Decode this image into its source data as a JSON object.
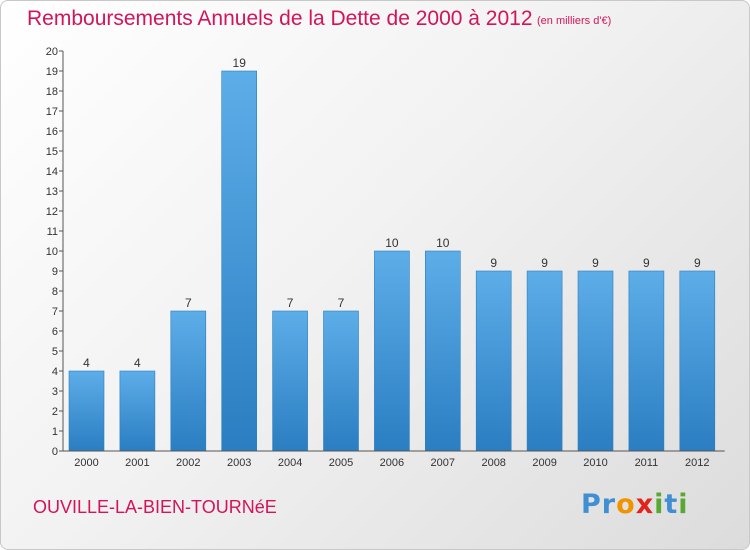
{
  "chart_data": {
    "type": "bar",
    "title": "Remboursements Annuels de la Dette de 2000 à 2012",
    "subtitle": "(en milliers d'€)",
    "categories": [
      "2000",
      "2001",
      "2002",
      "2003",
      "2004",
      "2005",
      "2006",
      "2007",
      "2008",
      "2009",
      "2010",
      "2011",
      "2012"
    ],
    "values": [
      4,
      4,
      7,
      19,
      7,
      7,
      10,
      10,
      9,
      9,
      9,
      9,
      9
    ],
    "data_labels": [
      "4",
      "4",
      "7",
      "19",
      "7",
      "7",
      "10",
      "10",
      "9",
      "9",
      "9",
      "9",
      "9"
    ],
    "yticks": [
      "0",
      "1",
      "2",
      "3",
      "4",
      "5",
      "6",
      "7",
      "8",
      "9",
      "10",
      "11",
      "12",
      "13",
      "14",
      "15",
      "16",
      "17",
      "18",
      "19",
      "20"
    ],
    "ylim": [
      0,
      20
    ],
    "xlabel": "",
    "ylabel": "",
    "grid": false,
    "colors": {
      "bar_light": "#5dade8",
      "bar_dark": "#2a7ec1",
      "title": "#d4145a"
    }
  },
  "commune": "OUVILLE-LA-BIEN-TOURNéE",
  "logo": {
    "text": "Proxiti",
    "letters": [
      {
        "char": "P",
        "color": "#3f8fd2"
      },
      {
        "char": "r",
        "color": "#3f8fd2"
      },
      {
        "char": "o",
        "color": "#f39200"
      },
      {
        "char": "x",
        "color": "#e2231a"
      },
      {
        "char": "i",
        "color": "#5aa832"
      },
      {
        "char": "t",
        "color": "#3f8fd2"
      },
      {
        "char": "i",
        "color": "#5aa832"
      }
    ]
  }
}
